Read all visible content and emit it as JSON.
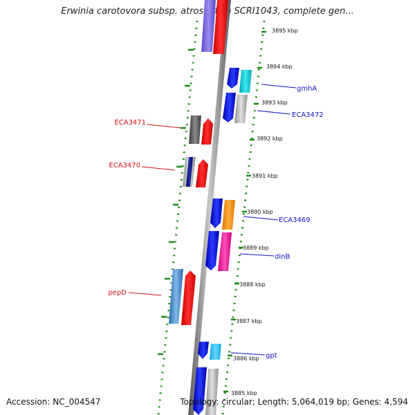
{
  "title": "Erwinia carotovora subsp. atroseptica SCRI1043, complete gen...",
  "footer": {
    "accession": "Accession: NC_004547",
    "topology": "Topology: circular; Length: 5,064,019 bp; Genes: 4,594"
  },
  "colors": {
    "backbone": "#8a8a8a",
    "tick_dotted": "#1a8a1a",
    "label_forward": "#1010c8",
    "label_reverse": "#d01010"
  },
  "kbp_ticks": [
    "3895 kbp",
    "3894 kbp",
    "3893 kbp",
    "3892 kbp",
    "3891 kbp",
    "3890 kbp",
    "3889 kbp",
    "3888 kbp",
    "3887 kbp",
    "3886 kbp",
    "3885 kbp"
  ],
  "gene_labels": {
    "forward": [
      "gmhA",
      "ECA3472",
      "ECA3469",
      "dinB",
      "gpt"
    ],
    "reverse": [
      "ECA3471",
      "ECA3470",
      "pepD"
    ]
  }
}
